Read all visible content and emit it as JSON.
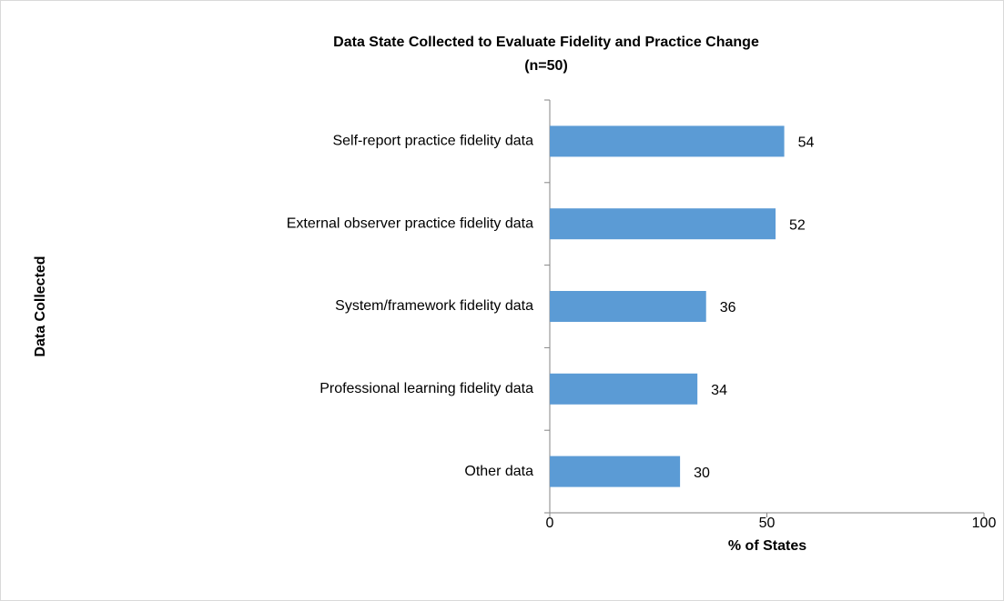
{
  "chart_data": {
    "type": "bar",
    "orientation": "horizontal",
    "title": "Data State Collected to Evaluate Fidelity and Practice Change",
    "subtitle": "(n=50)",
    "x_label": "% of States",
    "y_label": "Data Collected",
    "categories": [
      "Self-report practice fidelity data",
      "External observer practice fidelity data",
      "System/framework fidelity data",
      "Professional learning fidelity data",
      "Other data"
    ],
    "values": [
      54,
      52,
      36,
      34,
      30
    ],
    "color": "#5b9bd5",
    "xlim": [
      0,
      100
    ],
    "xticks": [
      0,
      50,
      100
    ],
    "grid": false
  }
}
